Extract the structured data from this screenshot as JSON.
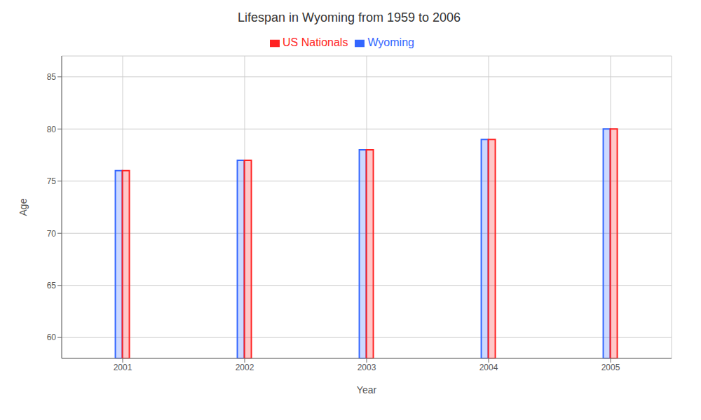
{
  "chart_data": {
    "type": "bar",
    "title": "Lifespan in Wyoming from 1959 to 2006",
    "x_label": "Year",
    "y_label": "Age",
    "categories": [
      "2001",
      "2002",
      "2003",
      "2004",
      "2005"
    ],
    "series": [
      {
        "name": "Wyoming",
        "color": "#3366ff",
        "values": [
          76,
          77,
          78,
          79,
          80
        ]
      },
      {
        "name": "US Nationals",
        "color": "#ff2222",
        "values": [
          76,
          77,
          78,
          79,
          80
        ]
      }
    ],
    "ylim": [
      58,
      87
    ],
    "yticks": [
      60,
      65,
      70,
      75,
      80,
      85
    ],
    "grid": true,
    "legend": "top"
  }
}
